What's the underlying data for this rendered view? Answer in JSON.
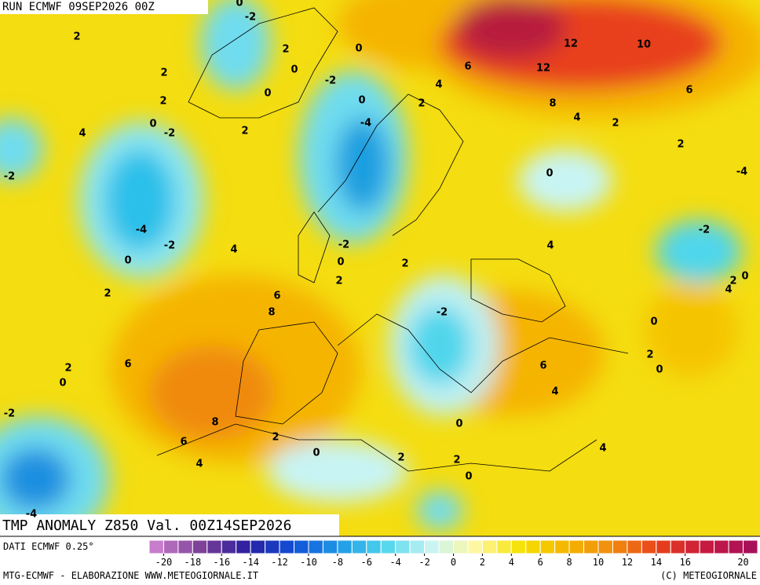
{
  "header": {
    "run": "RUN ECMWF 09SEP2026 00Z"
  },
  "map": {
    "title": "TMP ANOMALY Z850 Val. 00Z14SEP2026",
    "contour_labels": [
      "-2",
      "0",
      "2",
      "2",
      "0",
      "0",
      "-2",
      "2",
      "2",
      "0",
      "0",
      "0",
      "-2",
      "4",
      "2",
      "-4",
      "4",
      "2",
      "6",
      "12",
      "10",
      "12",
      "8",
      "4",
      "2",
      "6",
      "2",
      "-2",
      "0",
      "-4",
      "-4",
      "-2",
      "0",
      "4",
      "-2",
      "0",
      "2",
      "2",
      "4",
      "-2",
      "2",
      "0",
      "4",
      "2",
      "6",
      "8",
      "-2",
      "0",
      "6",
      "2",
      "0",
      "2",
      "0",
      "6",
      "4",
      "-2",
      "8",
      "6",
      "2",
      "0",
      "4",
      "0",
      "2",
      "2",
      "0",
      "4",
      "-4"
    ]
  },
  "colorbar": {
    "source": "DATI ECMWF 0.25°",
    "range": [
      -21,
      21
    ],
    "ticks": [
      -20,
      -18,
      -16,
      -14,
      -12,
      -10,
      -8,
      -6,
      -4,
      -2,
      0,
      2,
      4,
      6,
      8,
      10,
      12,
      14,
      16,
      20
    ],
    "color_stops": [
      "#c77ccc",
      "#7a3f96",
      "#2a1fa0",
      "#1050d8",
      "#1f9ae6",
      "#4fd6ec",
      "#c8f4f4",
      "#fff7a0",
      "#f5e100",
      "#f5b400",
      "#f08a10",
      "#e8401a",
      "#c81a40",
      "#a8105a"
    ]
  },
  "footer": {
    "credit": "MTG-ECMWF - ELABORAZIONE WWW.METEOGIORNALE.IT",
    "copyright": "(C) METEOGIORNALE"
  }
}
